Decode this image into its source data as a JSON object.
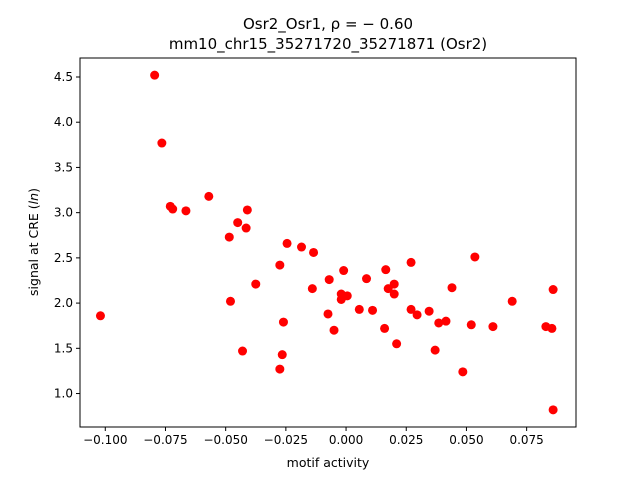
{
  "chart_data": {
    "type": "scatter",
    "title_line1": "Osr2_Osr1, ρ = − 0.60",
    "title_line2": "mm10_chr15_35271720_35271871 (Osr2)",
    "xlabel": "motif activity",
    "ylabel": "signal at CRE (ln)",
    "xlim": [
      -0.1105,
      0.0955
    ],
    "ylim": [
      0.63,
      4.71
    ],
    "xticks": [
      -0.1,
      -0.075,
      -0.05,
      -0.025,
      0.0,
      0.025,
      0.05,
      0.075
    ],
    "xtick_labels": [
      "−0.100",
      "−0.075",
      "−0.050",
      "−0.025",
      "0.000",
      "0.025",
      "0.050",
      "0.075"
    ],
    "yticks": [
      1.0,
      1.5,
      2.0,
      2.5,
      3.0,
      3.5,
      4.0,
      4.5
    ],
    "ytick_labels": [
      "1.0",
      "1.5",
      "2.0",
      "2.5",
      "3.0",
      "3.5",
      "4.0",
      "4.5"
    ],
    "grid": false,
    "marker_color": "#ff0000",
    "points": [
      {
        "x": -0.102,
        "y": 1.86
      },
      {
        "x": -0.0795,
        "y": 4.52
      },
      {
        "x": -0.0765,
        "y": 3.77
      },
      {
        "x": -0.073,
        "y": 3.07
      },
      {
        "x": -0.072,
        "y": 3.04
      },
      {
        "x": -0.0665,
        "y": 3.02
      },
      {
        "x": -0.057,
        "y": 3.18
      },
      {
        "x": -0.0485,
        "y": 2.73
      },
      {
        "x": -0.048,
        "y": 2.02
      },
      {
        "x": -0.045,
        "y": 2.89
      },
      {
        "x": -0.043,
        "y": 1.47
      },
      {
        "x": -0.0415,
        "y": 2.83
      },
      {
        "x": -0.041,
        "y": 3.03
      },
      {
        "x": -0.0375,
        "y": 2.21
      },
      {
        "x": -0.0275,
        "y": 2.42
      },
      {
        "x": -0.0275,
        "y": 1.27
      },
      {
        "x": -0.0265,
        "y": 1.43
      },
      {
        "x": -0.026,
        "y": 1.79
      },
      {
        "x": -0.0245,
        "y": 2.66
      },
      {
        "x": -0.0185,
        "y": 2.62
      },
      {
        "x": -0.0135,
        "y": 2.56
      },
      {
        "x": -0.014,
        "y": 2.16
      },
      {
        "x": -0.0075,
        "y": 1.88
      },
      {
        "x": -0.007,
        "y": 2.26
      },
      {
        "x": -0.005,
        "y": 1.7
      },
      {
        "x": -0.002,
        "y": 2.1
      },
      {
        "x": -0.002,
        "y": 2.04
      },
      {
        "x": -0.001,
        "y": 2.36
      },
      {
        "x": 0.0005,
        "y": 2.08
      },
      {
        "x": 0.0055,
        "y": 1.93
      },
      {
        "x": 0.0085,
        "y": 2.27
      },
      {
        "x": 0.011,
        "y": 1.92
      },
      {
        "x": 0.016,
        "y": 1.72
      },
      {
        "x": 0.0165,
        "y": 2.37
      },
      {
        "x": 0.0175,
        "y": 2.16
      },
      {
        "x": 0.02,
        "y": 2.21
      },
      {
        "x": 0.02,
        "y": 2.1
      },
      {
        "x": 0.021,
        "y": 1.55
      },
      {
        "x": 0.027,
        "y": 2.45
      },
      {
        "x": 0.027,
        "y": 1.93
      },
      {
        "x": 0.0295,
        "y": 1.87
      },
      {
        "x": 0.0345,
        "y": 1.91
      },
      {
        "x": 0.037,
        "y": 1.48
      },
      {
        "x": 0.0385,
        "y": 1.78
      },
      {
        "x": 0.0415,
        "y": 1.8
      },
      {
        "x": 0.044,
        "y": 2.17
      },
      {
        "x": 0.0485,
        "y": 1.24
      },
      {
        "x": 0.052,
        "y": 1.76
      },
      {
        "x": 0.0535,
        "y": 2.51
      },
      {
        "x": 0.061,
        "y": 1.74
      },
      {
        "x": 0.069,
        "y": 2.02
      },
      {
        "x": 0.083,
        "y": 1.74
      },
      {
        "x": 0.0855,
        "y": 1.72
      },
      {
        "x": 0.086,
        "y": 2.15
      },
      {
        "x": 0.086,
        "y": 0.82
      }
    ]
  }
}
